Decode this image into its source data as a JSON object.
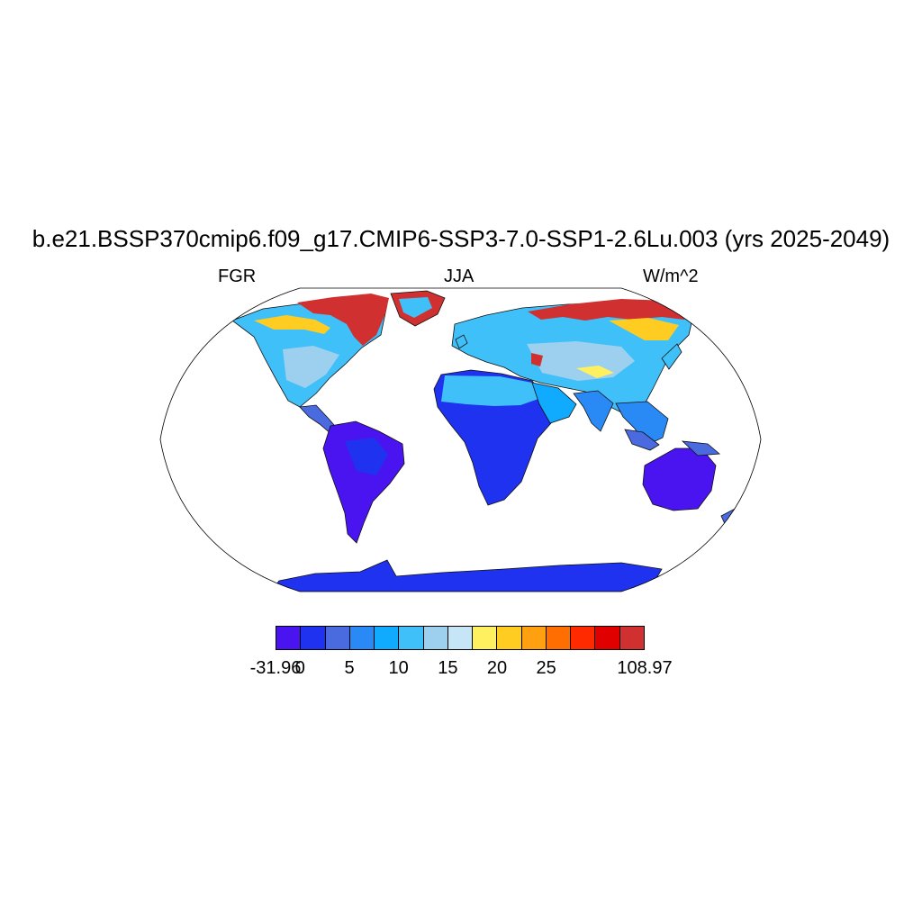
{
  "title": "b.e21.BSSP370cmip6.f09_g17.CMIP6-SSP3-7.0-SSP1-2.6Lu.003 (yrs 2025-2049)",
  "left_label": "FGR",
  "center_label": "JJA",
  "right_label": "W/m^2",
  "colorbar": {
    "colors": [
      "#4a14f0",
      "#1e32f0",
      "#4a6ae0",
      "#2a8af5",
      "#10aaff",
      "#40c0f8",
      "#9dd0ee",
      "#c6e6f8",
      "#fff060",
      "#ffcc22",
      "#ffa010",
      "#ff6e00",
      "#ff2a00",
      "#e00000",
      "#d03030"
    ],
    "tick_labels": [
      "-31.96",
      "0",
      "5",
      "10",
      "15",
      "20",
      "25",
      "108.97"
    ]
  },
  "map": {
    "projection": "Robinson",
    "variable": "FGR",
    "units": "W/m^2",
    "season": "JJA"
  }
}
